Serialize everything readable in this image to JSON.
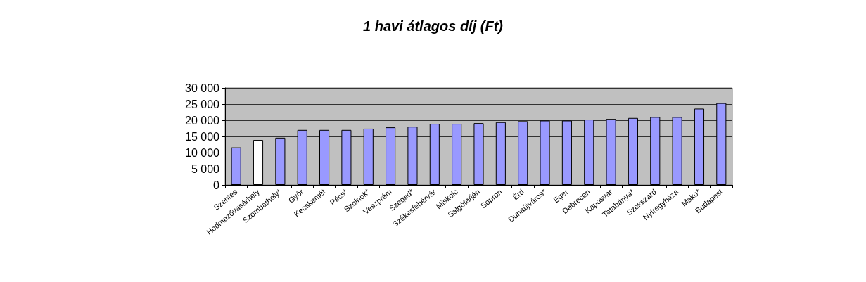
{
  "chart_data": {
    "type": "bar",
    "title": "1 havi átlagos díj (Ft)",
    "categories": [
      "Szentes",
      "Hódmezővásárhely",
      "Szombathely*",
      "Győr",
      "Kecskemét",
      "Pécs*",
      "Szolnok*",
      "Veszprém",
      "Szeged*",
      "Székesfehérvár",
      "Miskolc",
      "Salgótarján",
      "Sopron",
      "Érd",
      "Dunaújváros*",
      "Eger",
      "Debrecen",
      "Kaposvár",
      "Tatabánya*",
      "Szekszárd",
      "Nyíregyháza",
      "Makó*",
      "Budapest"
    ],
    "values": [
      11600,
      13900,
      14600,
      17000,
      17000,
      17000,
      17400,
      17800,
      18000,
      18900,
      18900,
      19100,
      19400,
      19700,
      19900,
      19900,
      20200,
      20400,
      20700,
      21000,
      21000,
      23600,
      25300
    ],
    "colors": [
      "#9999ff",
      "#ffffff",
      "#9999ff",
      "#9999ff",
      "#9999ff",
      "#9999ff",
      "#9999ff",
      "#9999ff",
      "#9999ff",
      "#9999ff",
      "#9999ff",
      "#9999ff",
      "#9999ff",
      "#9999ff",
      "#9999ff",
      "#9999ff",
      "#9999ff",
      "#9999ff",
      "#9999ff",
      "#9999ff",
      "#9999ff",
      "#9999ff",
      "#9999ff"
    ],
    "ylim": [
      0,
      30000
    ],
    "yticks": [
      0,
      {
        "value": 5000,
        "label": "5 000"
      },
      {
        "value": 10000,
        "label": "10 000"
      },
      {
        "value": 15000,
        "label": "15 000"
      },
      {
        "value": 20000,
        "label": "20 000"
      },
      {
        "value": 25000,
        "label": "25 000"
      },
      {
        "value": 30000,
        "label": "30 000"
      }
    ],
    "grid": "y"
  }
}
